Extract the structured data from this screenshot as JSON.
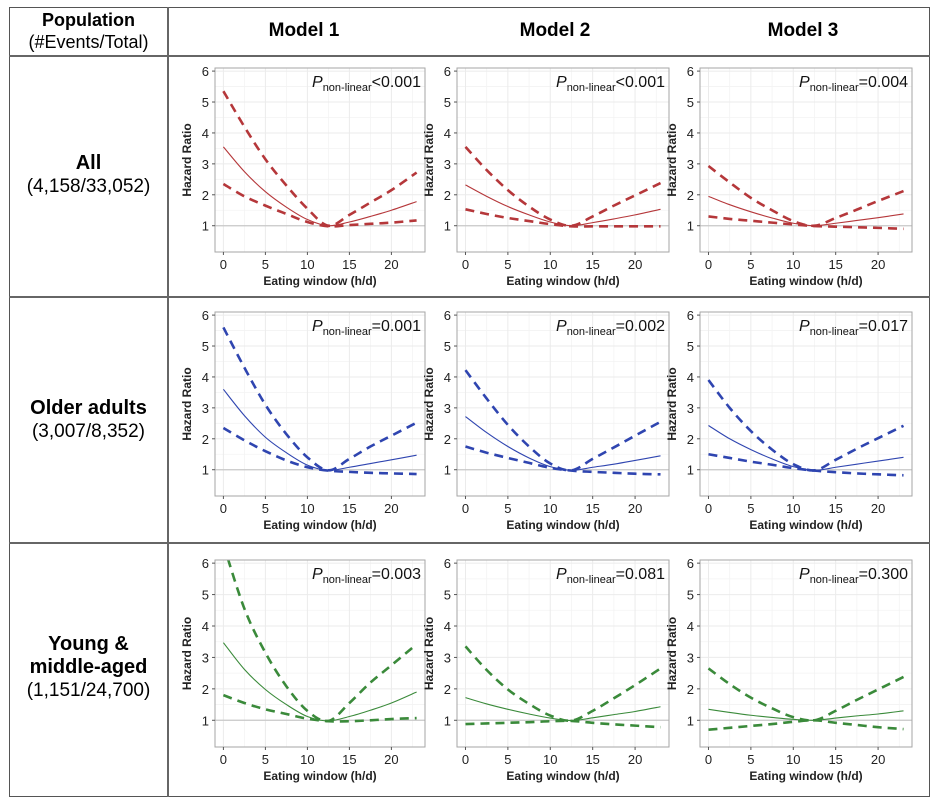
{
  "header": {
    "population_title": "Population",
    "population_subtitle": "(#Events/Total)",
    "models": [
      "Model 1",
      "Model 2",
      "Model 3"
    ]
  },
  "rows": [
    {
      "name": "All",
      "name_lines": [
        "All"
      ],
      "counts": "(4,158/33,052)",
      "color": "#b5373a"
    },
    {
      "name": "Older adults",
      "name_lines": [
        "Older adults"
      ],
      "counts": "(3,007/8,352)",
      "color": "#2f45b0"
    },
    {
      "name": "Young & middle-aged",
      "name_lines": [
        "Young &",
        "middle-aged"
      ],
      "counts": "(1,151/24,700)",
      "color": "#3a8a3a"
    }
  ],
  "chart_data": [
    {
      "type": "line",
      "row": "All",
      "model": "Model 1",
      "title": "",
      "xlabel": "Eating window (h/d)",
      "ylabel": "Hazard Ratio",
      "xlim": [
        -1,
        24
      ],
      "ylim": [
        0.15,
        6.1
      ],
      "xticks": [
        0,
        5,
        10,
        15,
        20
      ],
      "yticks": [
        1,
        2,
        3,
        4,
        5,
        6
      ],
      "reference_line": 1,
      "grid": true,
      "annotation": {
        "prefix": "P",
        "subscript": "non-linear",
        "value": "<0.001"
      },
      "x": [
        0,
        2.5,
        5,
        7.5,
        10,
        12.5,
        15,
        17.5,
        20,
        23
      ],
      "series": [
        {
          "name": "HR",
          "style": "solid",
          "values": [
            3.55,
            2.75,
            2.1,
            1.6,
            1.2,
            1.0,
            1.12,
            1.3,
            1.5,
            1.78
          ]
        },
        {
          "name": "Upper CI",
          "style": "dashed",
          "values": [
            5.35,
            4.2,
            3.15,
            2.3,
            1.55,
            1.0,
            1.35,
            1.75,
            2.15,
            2.72
          ]
        },
        {
          "name": "Lower CI",
          "style": "dashed",
          "values": [
            2.35,
            1.95,
            1.65,
            1.38,
            1.12,
            0.98,
            1.02,
            1.06,
            1.1,
            1.17
          ]
        }
      ]
    },
    {
      "type": "line",
      "row": "All",
      "model": "Model 2",
      "title": "",
      "xlabel": "Eating window (h/d)",
      "ylabel": "Hazard Ratio",
      "xlim": [
        -1,
        24
      ],
      "ylim": [
        0.15,
        6.1
      ],
      "xticks": [
        0,
        5,
        10,
        15,
        20
      ],
      "yticks": [
        1,
        2,
        3,
        4,
        5,
        6
      ],
      "reference_line": 1,
      "grid": true,
      "annotation": {
        "prefix": "P",
        "subscript": "non-linear",
        "value": "<0.001"
      },
      "x": [
        0,
        2.5,
        5,
        7.5,
        10,
        12.5,
        15,
        17.5,
        20,
        23
      ],
      "series": [
        {
          "name": "HR",
          "style": "solid",
          "values": [
            2.32,
            1.95,
            1.62,
            1.35,
            1.12,
            1.0,
            1.1,
            1.22,
            1.35,
            1.53
          ]
        },
        {
          "name": "Upper CI",
          "style": "dashed",
          "values": [
            3.55,
            2.8,
            2.15,
            1.62,
            1.2,
            1.0,
            1.3,
            1.65,
            1.98,
            2.38
          ]
        },
        {
          "name": "Lower CI",
          "style": "dashed",
          "values": [
            1.53,
            1.38,
            1.25,
            1.15,
            1.05,
            0.98,
            0.98,
            0.98,
            0.98,
            0.98
          ]
        }
      ]
    },
    {
      "type": "line",
      "row": "All",
      "model": "Model 3",
      "title": "",
      "xlabel": "Eating window (h/d)",
      "ylabel": "Hazard Ratio",
      "xlim": [
        -1,
        24
      ],
      "ylim": [
        0.15,
        6.1
      ],
      "xticks": [
        0,
        5,
        10,
        15,
        20
      ],
      "yticks": [
        1,
        2,
        3,
        4,
        5,
        6
      ],
      "reference_line": 1,
      "grid": true,
      "annotation": {
        "prefix": "P",
        "subscript": "non-linear",
        "value": "=0.004"
      },
      "x": [
        0,
        2.5,
        5,
        7.5,
        10,
        12.5,
        15,
        17.5,
        20,
        23
      ],
      "series": [
        {
          "name": "HR",
          "style": "solid",
          "values": [
            1.95,
            1.68,
            1.45,
            1.25,
            1.08,
            1.0,
            1.08,
            1.17,
            1.26,
            1.38
          ]
        },
        {
          "name": "Upper CI",
          "style": "dashed",
          "values": [
            2.93,
            2.4,
            1.9,
            1.5,
            1.15,
            1.0,
            1.25,
            1.52,
            1.8,
            2.12
          ]
        },
        {
          "name": "Lower CI",
          "style": "dashed",
          "values": [
            1.3,
            1.22,
            1.16,
            1.1,
            1.04,
            0.99,
            0.97,
            0.95,
            0.93,
            0.9
          ]
        }
      ]
    },
    {
      "type": "line",
      "row": "Older adults",
      "model": "Model 1",
      "title": "",
      "xlabel": "Eating window (h/d)",
      "ylabel": "Hazard Ratio",
      "xlim": [
        -1,
        24
      ],
      "ylim": [
        0.15,
        6.1
      ],
      "xticks": [
        0,
        5,
        10,
        15,
        20
      ],
      "yticks": [
        1,
        2,
        3,
        4,
        5,
        6
      ],
      "reference_line": 1,
      "grid": true,
      "annotation": {
        "prefix": "P",
        "subscript": "non-linear",
        "value": "=0.001"
      },
      "x": [
        0,
        2.5,
        5,
        7.5,
        10,
        12.5,
        15,
        17.5,
        20,
        23
      ],
      "series": [
        {
          "name": "HR",
          "style": "solid",
          "values": [
            3.6,
            2.75,
            2.05,
            1.55,
            1.15,
            0.98,
            1.08,
            1.2,
            1.32,
            1.47
          ]
        },
        {
          "name": "Upper CI",
          "style": "dashed",
          "values": [
            5.6,
            4.3,
            3.1,
            2.15,
            1.4,
            0.98,
            1.35,
            1.75,
            2.1,
            2.52
          ]
        },
        {
          "name": "Lower CI",
          "style": "dashed",
          "values": [
            2.35,
            1.95,
            1.6,
            1.3,
            1.08,
            0.97,
            0.93,
            0.9,
            0.88,
            0.86
          ]
        }
      ]
    },
    {
      "type": "line",
      "row": "Older adults",
      "model": "Model 2",
      "title": "",
      "xlabel": "Eating window (h/d)",
      "ylabel": "Hazard Ratio",
      "xlim": [
        -1,
        24
      ],
      "ylim": [
        0.15,
        6.1
      ],
      "xticks": [
        0,
        5,
        10,
        15,
        20
      ],
      "yticks": [
        1,
        2,
        3,
        4,
        5,
        6
      ],
      "reference_line": 1,
      "grid": true,
      "annotation": {
        "prefix": "P",
        "subscript": "non-linear",
        "value": "=0.002"
      },
      "x": [
        0,
        2.5,
        5,
        7.5,
        10,
        12.5,
        15,
        17.5,
        20,
        23
      ],
      "series": [
        {
          "name": "HR",
          "style": "solid",
          "values": [
            2.72,
            2.2,
            1.75,
            1.38,
            1.1,
            0.98,
            1.08,
            1.18,
            1.3,
            1.45
          ]
        },
        {
          "name": "Upper CI",
          "style": "dashed",
          "values": [
            4.22,
            3.3,
            2.45,
            1.75,
            1.2,
            0.98,
            1.35,
            1.72,
            2.1,
            2.55
          ]
        },
        {
          "name": "Lower CI",
          "style": "dashed",
          "values": [
            1.75,
            1.55,
            1.38,
            1.22,
            1.06,
            0.97,
            0.93,
            0.9,
            0.87,
            0.85
          ]
        }
      ]
    },
    {
      "type": "line",
      "row": "Older adults",
      "model": "Model 3",
      "title": "",
      "xlabel": "Eating window (h/d)",
      "ylabel": "Hazard Ratio",
      "xlim": [
        -1,
        24
      ],
      "ylim": [
        0.15,
        6.1
      ],
      "xticks": [
        0,
        5,
        10,
        15,
        20
      ],
      "yticks": [
        1,
        2,
        3,
        4,
        5,
        6
      ],
      "reference_line": 1,
      "grid": true,
      "annotation": {
        "prefix": "P",
        "subscript": "non-linear",
        "value": "=0.017"
      },
      "x": [
        0,
        2.5,
        5,
        7.5,
        10,
        12.5,
        15,
        17.5,
        20,
        23
      ],
      "series": [
        {
          "name": "HR",
          "style": "solid",
          "values": [
            2.43,
            2.0,
            1.65,
            1.35,
            1.1,
            0.98,
            1.08,
            1.18,
            1.28,
            1.4
          ]
        },
        {
          "name": "Upper CI",
          "style": "dashed",
          "values": [
            3.9,
            3.0,
            2.25,
            1.65,
            1.18,
            0.98,
            1.32,
            1.68,
            2.02,
            2.42
          ]
        },
        {
          "name": "Lower CI",
          "style": "dashed",
          "values": [
            1.5,
            1.38,
            1.26,
            1.16,
            1.05,
            0.97,
            0.92,
            0.88,
            0.85,
            0.82
          ]
        }
      ]
    },
    {
      "type": "line",
      "row": "Young & middle-aged",
      "model": "Model 1",
      "title": "",
      "xlabel": "Eating window (h/d)",
      "ylabel": "Hazard Ratio",
      "xlim": [
        -1,
        24
      ],
      "ylim": [
        0.15,
        6.1
      ],
      "xticks": [
        0,
        5,
        10,
        15,
        20
      ],
      "yticks": [
        1,
        2,
        3,
        4,
        5,
        6
      ],
      "reference_line": 1,
      "grid": true,
      "annotation": {
        "prefix": "P",
        "subscript": "non-linear",
        "value": "=0.003"
      },
      "x": [
        0,
        2.5,
        5,
        7.5,
        10,
        12.5,
        15,
        17.5,
        20,
        23
      ],
      "series": [
        {
          "name": "HR",
          "style": "solid",
          "values": [
            3.47,
            2.62,
            1.98,
            1.5,
            1.12,
            0.98,
            1.12,
            1.32,
            1.55,
            1.9
          ]
        },
        {
          "name": "Upper CI",
          "style": "dashed",
          "values": [
            6.6,
            4.55,
            3.15,
            2.08,
            1.3,
            0.98,
            1.55,
            2.2,
            2.75,
            3.42
          ]
        },
        {
          "name": "Lower CI",
          "style": "dashed",
          "values": [
            1.8,
            1.55,
            1.35,
            1.2,
            1.05,
            0.97,
            0.97,
            1.0,
            1.04,
            1.07
          ]
        }
      ]
    },
    {
      "type": "line",
      "row": "Young & middle-aged",
      "model": "Model 2",
      "title": "",
      "xlabel": "Eating window (h/d)",
      "ylabel": "Hazard Ratio",
      "xlim": [
        -1,
        24
      ],
      "ylim": [
        0.15,
        6.1
      ],
      "xticks": [
        0,
        5,
        10,
        15,
        20
      ],
      "yticks": [
        1,
        2,
        3,
        4,
        5,
        6
      ],
      "reference_line": 1,
      "grid": true,
      "annotation": {
        "prefix": "P",
        "subscript": "non-linear",
        "value": "=0.081"
      },
      "x": [
        0,
        2.5,
        5,
        7.5,
        10,
        12.5,
        15,
        17.5,
        20,
        23
      ],
      "series": [
        {
          "name": "HR",
          "style": "solid",
          "values": [
            1.72,
            1.52,
            1.35,
            1.2,
            1.07,
            0.99,
            1.08,
            1.18,
            1.28,
            1.43
          ]
        },
        {
          "name": "Upper CI",
          "style": "dashed",
          "values": [
            3.35,
            2.6,
            1.98,
            1.52,
            1.15,
            0.99,
            1.3,
            1.7,
            2.12,
            2.65
          ]
        },
        {
          "name": "Lower CI",
          "style": "dashed",
          "values": [
            0.88,
            0.9,
            0.92,
            0.94,
            0.97,
            0.98,
            0.92,
            0.87,
            0.83,
            0.78
          ]
        }
      ]
    },
    {
      "type": "line",
      "row": "Young & middle-aged",
      "model": "Model 3",
      "title": "",
      "xlabel": "Eating window (h/d)",
      "ylabel": "Hazard Ratio",
      "xlim": [
        -1,
        24
      ],
      "ylim": [
        0.15,
        6.1
      ],
      "xticks": [
        0,
        5,
        10,
        15,
        20
      ],
      "yticks": [
        1,
        2,
        3,
        4,
        5,
        6
      ],
      "reference_line": 1,
      "grid": true,
      "annotation": {
        "prefix": "P",
        "subscript": "non-linear",
        "value": "=0.300"
      },
      "x": [
        0,
        2.5,
        5,
        7.5,
        10,
        12.5,
        15,
        17.5,
        20,
        23
      ],
      "series": [
        {
          "name": "HR",
          "style": "solid",
          "values": [
            1.35,
            1.25,
            1.16,
            1.09,
            1.03,
            1.0,
            1.07,
            1.14,
            1.2,
            1.3
          ]
        },
        {
          "name": "Upper CI",
          "style": "dashed",
          "values": [
            2.65,
            2.15,
            1.72,
            1.38,
            1.1,
            1.0,
            1.3,
            1.65,
            1.98,
            2.38
          ]
        },
        {
          "name": "Lower CI",
          "style": "dashed",
          "values": [
            0.7,
            0.76,
            0.82,
            0.88,
            0.95,
            1.0,
            0.92,
            0.85,
            0.78,
            0.72
          ]
        }
      ]
    }
  ]
}
